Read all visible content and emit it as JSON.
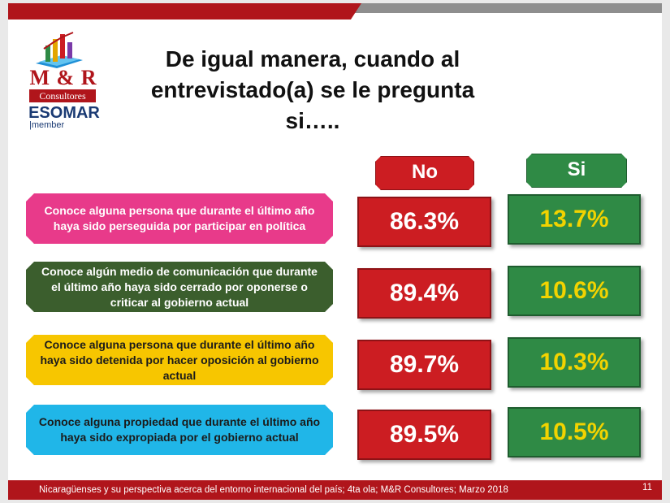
{
  "logo": {
    "brand": "M & R",
    "sub": "Consultores",
    "esomar": "ESOMAR",
    "member": "member"
  },
  "title": "De igual manera, cuando al entrevistado(a) se le pregunta si…..",
  "chart_data": {
    "type": "table",
    "columns": [
      "No",
      "Si"
    ],
    "rows": [
      {
        "label": "Conoce alguna persona que durante el último año haya sido perseguida por participar en política",
        "no": "86.3%",
        "si": "13.7%",
        "no_value": 86.3,
        "si_value": 13.7,
        "label_color": "#e83a8a",
        "label_text_color": "#ffffff"
      },
      {
        "label": "Conoce algún medio de comunicación que durante el último año haya sido cerrado por oponerse o criticar al gobierno actual",
        "no": "89.4%",
        "si": "10.6%",
        "no_value": 89.4,
        "si_value": 10.6,
        "label_color": "#3b5e2d",
        "label_text_color": "#ffffff"
      },
      {
        "label": "Conoce alguna persona que durante el último año haya sido detenida por hacer oposición al gobierno actual",
        "no": "89.7%",
        "si": "10.3%",
        "no_value": 89.7,
        "si_value": 10.3,
        "label_color": "#f7c600",
        "label_text_color": "#1b1b1b"
      },
      {
        "label": "Conoce alguna propiedad que durante el último año haya sido expropiada por el gobierno actual",
        "no": "89.5%",
        "si": "10.5%",
        "no_value": 89.5,
        "si_value": 10.5,
        "label_color": "#20b6e8",
        "label_text_color": "#1b1b1b"
      }
    ]
  },
  "colors": {
    "no": "#cc1d22",
    "si": "#2f8a45",
    "si_text": "#f2d300",
    "accent": "#b0151b"
  },
  "footer": {
    "text": "Nicaragüenses y su perspectiva acerca del entorno internacional del país; 4ta ola; M&R Consultores; Marzo 2018",
    "page": "11"
  }
}
